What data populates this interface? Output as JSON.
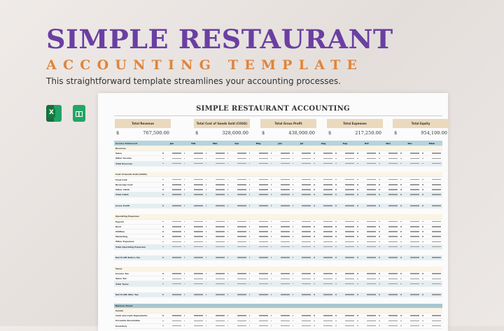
{
  "banner": {
    "title": "SIMPLE RESTAURANT",
    "subtitle": "ACCOUNTING TEMPLATE",
    "tagline": "This straightforward template streamlines your accounting processes.",
    "title_color": "#6a3fa2",
    "subtitle_color": "#e0843a"
  },
  "icons": [
    {
      "name": "excel-icon",
      "text": "X"
    },
    {
      "name": "google-sheets-icon"
    }
  ],
  "sheet": {
    "title": "SIMPLE RESTAURANT ACCOUNTING",
    "kpis": [
      {
        "label": "Total Revenue",
        "currency": "$",
        "value": "767,500.00"
      },
      {
        "label": "Total Cost of Goods Sold (COGS)",
        "currency": "$",
        "value": "328,600.00"
      },
      {
        "label": "Total Gross Profit",
        "currency": "$",
        "value": "438,900.00"
      },
      {
        "label": "Total Expenses",
        "currency": "$",
        "value": "217,250.00"
      },
      {
        "label": "Total Equity",
        "currency": "$",
        "value": "954,100.00"
      }
    ],
    "columns": [
      "Income Statement",
      "Jan",
      "Feb",
      "Mar",
      "Apr",
      "May",
      "Jun",
      "Jul",
      "Aug",
      "Sep",
      "Oct",
      "Nov",
      "Dec",
      "Total"
    ],
    "rows": [
      {
        "label": "Revenue",
        "type": "sec"
      },
      {
        "label": "Sales",
        "type": "item"
      },
      {
        "label": "Other Income",
        "type": "item"
      },
      {
        "label": "Total Revenue",
        "type": "tot"
      },
      {
        "type": "gap"
      },
      {
        "label": "Cost of Goods Sold (COGS)",
        "type": "sec"
      },
      {
        "label": "Food Cost",
        "type": "item"
      },
      {
        "label": "Beverage Cost",
        "type": "item"
      },
      {
        "label": "Other COGS",
        "type": "item"
      },
      {
        "label": "Total COGS",
        "type": "tot"
      },
      {
        "type": "gap"
      },
      {
        "label": "Gross Profit",
        "type": "tot"
      },
      {
        "type": "gap"
      },
      {
        "label": "Operating Expenses",
        "type": "sec"
      },
      {
        "label": "Payroll",
        "type": "item"
      },
      {
        "label": "Rent",
        "type": "item"
      },
      {
        "label": "Utilities",
        "type": "item"
      },
      {
        "label": "Marketing",
        "type": "item"
      },
      {
        "label": "Other Expenses",
        "type": "item"
      },
      {
        "label": "Total Operating Expenses",
        "type": "tot"
      },
      {
        "type": "gap"
      },
      {
        "label": "Net Profit Before Tax",
        "type": "tot"
      },
      {
        "type": "gap"
      },
      {
        "label": "Taxes",
        "type": "sec"
      },
      {
        "label": "Income Tax",
        "type": "item"
      },
      {
        "label": "Sales Tax",
        "type": "item"
      },
      {
        "label": "Total Taxes",
        "type": "tot"
      },
      {
        "type": "gap"
      },
      {
        "label": "Net Profit After Tax",
        "type": "tot"
      },
      {
        "type": "gap"
      },
      {
        "label": "Balance Sheet",
        "type": "bs"
      },
      {
        "label": "Assets",
        "type": "sec"
      },
      {
        "label": "Cash and Cash Equivalents",
        "type": "item"
      },
      {
        "label": "Accounts Receivable",
        "type": "item"
      },
      {
        "label": "Inventory",
        "type": "item"
      }
    ]
  }
}
